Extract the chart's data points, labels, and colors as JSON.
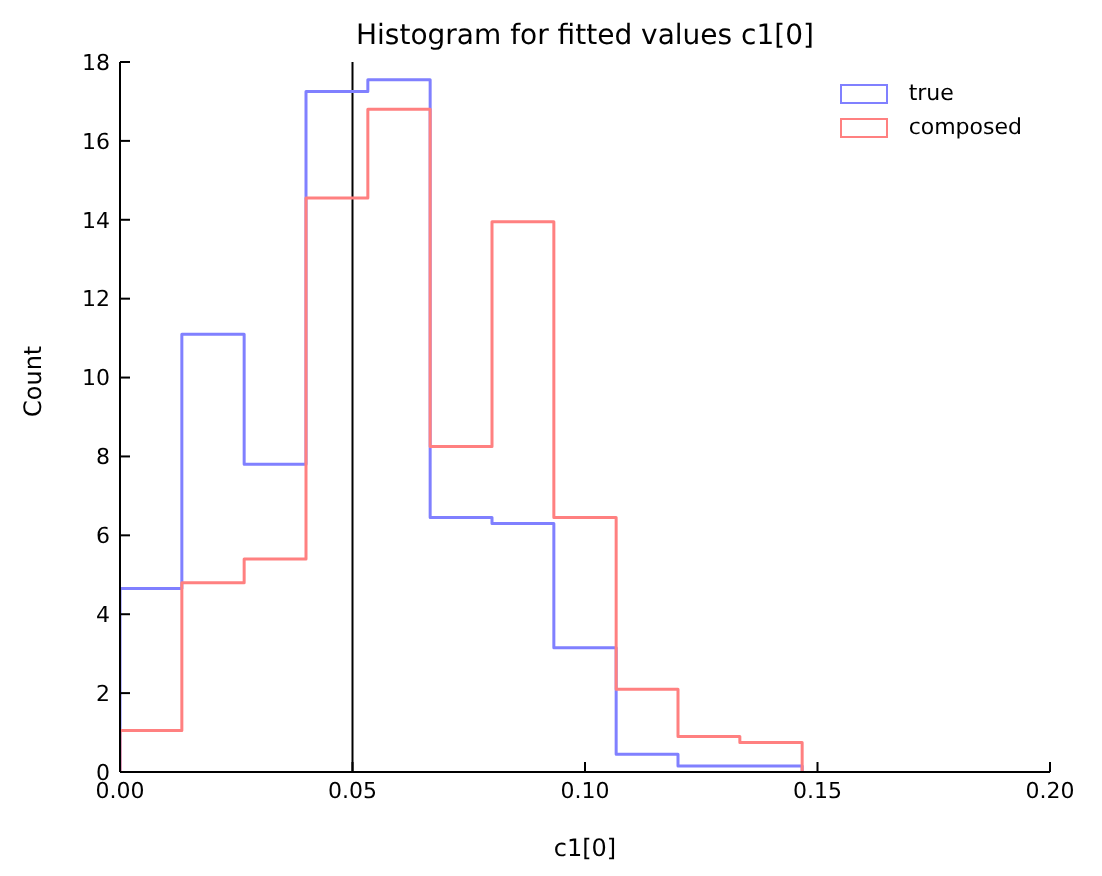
{
  "chart_data": {
    "type": "histogram",
    "title": "Histogram for fitted values c1[0]",
    "xlabel": "c1[0]",
    "ylabel": "Count",
    "bins": [
      0,
      0.0133,
      0.0267,
      0.04,
      0.0533,
      0.0667,
      0.08,
      0.0933,
      0.1067,
      0.12,
      0.1333,
      0.1467
    ],
    "series": [
      {
        "name": "true",
        "color": "#8080ff",
        "values": [
          4.65,
          11.1,
          7.8,
          17.25,
          17.55,
          6.45,
          6.3,
          3.15,
          0.45,
          0.15,
          0.15
        ]
      },
      {
        "name": "composed",
        "color": "#ff8080",
        "values": [
          1.05,
          4.8,
          5.4,
          14.55,
          16.8,
          8.25,
          13.95,
          6.45,
          2.1,
          0.9,
          0.75
        ]
      }
    ],
    "xlim": [
      0,
      0.2
    ],
    "xticks": [
      {
        "value": 0,
        "label": "0.00"
      },
      {
        "value": 0.05,
        "label": "0.05"
      },
      {
        "value": 0.1,
        "label": "0.10"
      },
      {
        "value": 0.15,
        "label": "0.15"
      },
      {
        "value": 0.2,
        "label": "0.20"
      }
    ],
    "ylim": [
      0,
      18
    ],
    "yticks": [
      0,
      2,
      4,
      6,
      8,
      10,
      12,
      14,
      16,
      18
    ],
    "ref_lines": [
      {
        "axis": "x",
        "value": 0.05,
        "color": "#000000"
      }
    ],
    "legend": "top right",
    "grid": false
  }
}
